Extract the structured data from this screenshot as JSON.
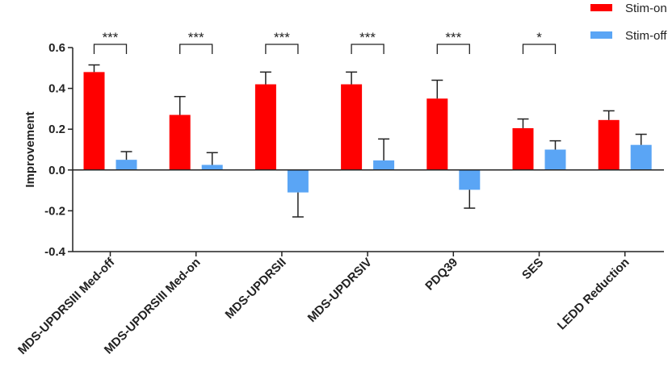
{
  "chart_data": {
    "type": "bar",
    "title": "",
    "xlabel": "",
    "ylabel": "Improvement",
    "ylim": [
      -0.4,
      0.6
    ],
    "yticks": [
      "-0.4",
      "-0.2",
      "0.0",
      "0.2",
      "0.4",
      "0.6"
    ],
    "categories": [
      "MDS-UPDRSIII Med-off",
      "MDS-UPDRSIII Med-on",
      "MDS-UPDRSII",
      "MDS-UPDRSIV",
      "PDQ39",
      "SES",
      "LEDD Reduction"
    ],
    "series": [
      {
        "name": "Stim-on",
        "color": "#ff0000",
        "values": [
          0.48,
          0.27,
          0.42,
          0.42,
          0.35,
          0.205,
          0.245
        ],
        "error": [
          0.035,
          0.09,
          0.06,
          0.06,
          0.09,
          0.045,
          0.045
        ]
      },
      {
        "name": "Stim-off",
        "color": "#5aa5f5",
        "values": [
          0.05,
          0.025,
          -0.11,
          0.047,
          -0.097,
          0.1,
          0.123
        ],
        "error": [
          0.04,
          0.06,
          0.12,
          0.105,
          0.09,
          0.043,
          0.052
        ]
      }
    ],
    "significance": [
      "***",
      "***",
      "***",
      "***",
      "***",
      "*",
      ""
    ],
    "legend_position": "top-right",
    "grid": false
  }
}
